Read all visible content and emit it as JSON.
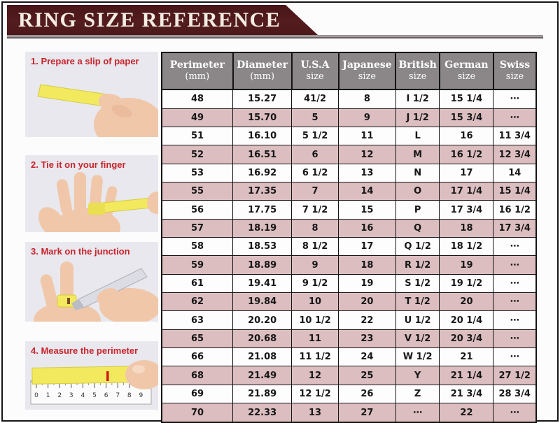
{
  "title": "RING SIZE REFERENCE",
  "steps": [
    {
      "label": "1. Prepare a slip of paper"
    },
    {
      "label": "2. Tie it on your finger"
    },
    {
      "label": "3. Mark on the junction"
    },
    {
      "label": "4. Measure the perimeter",
      "ruler_numbers": [
        "0",
        "1",
        "2",
        "3",
        "4",
        "5",
        "6",
        "7",
        "8",
        "9"
      ]
    }
  ],
  "table": {
    "headers": [
      {
        "line1": "Perimeter",
        "line2": "(mm)"
      },
      {
        "line1": "Diameter",
        "line2": "(mm)"
      },
      {
        "line1": "U.S.A",
        "line2": "size"
      },
      {
        "line1": "Japanese",
        "line2": "size"
      },
      {
        "line1": "British",
        "line2": "size"
      },
      {
        "line1": "German",
        "line2": "size"
      },
      {
        "line1": "Swiss",
        "line2": "size"
      }
    ],
    "rows": [
      [
        "48",
        "15.27",
        "41/2",
        "8",
        "I 1/2",
        "15 1/4",
        "⋯"
      ],
      [
        "49",
        "15.70",
        "5",
        "9",
        "J 1/2",
        "15 3/4",
        "⋯"
      ],
      [
        "51",
        "16.10",
        "5 1/2",
        "11",
        "L",
        "16",
        "11 3/4"
      ],
      [
        "52",
        "16.51",
        "6",
        "12",
        "M",
        "16 1/2",
        "12 3/4"
      ],
      [
        "53",
        "16.92",
        "6 1/2",
        "13",
        "N",
        "17",
        "14"
      ],
      [
        "55",
        "17.35",
        "7",
        "14",
        "O",
        "17 1/4",
        "15 1/4"
      ],
      [
        "56",
        "17.75",
        "7 1/2",
        "15",
        "P",
        "17 3/4",
        "16 1/2"
      ],
      [
        "57",
        "18.19",
        "8",
        "16",
        "Q",
        "18",
        "17 3/4"
      ],
      [
        "58",
        "18.53",
        "8 1/2",
        "17",
        "Q 1/2",
        "18 1/2",
        "⋯"
      ],
      [
        "59",
        "18.89",
        "9",
        "18",
        "R 1/2",
        "19",
        "⋯"
      ],
      [
        "61",
        "19.41",
        "9 1/2",
        "19",
        "S 1/2",
        "19 1/2",
        "⋯"
      ],
      [
        "62",
        "19.84",
        "10",
        "20",
        "T 1/2",
        "20",
        "⋯"
      ],
      [
        "63",
        "20.20",
        "10 1/2",
        "22",
        "U 1/2",
        "20 1/4",
        "⋯"
      ],
      [
        "65",
        "20.68",
        "11",
        "23",
        "V 1/2",
        "20 3/4",
        "⋯"
      ],
      [
        "66",
        "21.08",
        "11 1/2",
        "24",
        "W 1/2",
        "21",
        "⋯"
      ],
      [
        "68",
        "21.49",
        "12",
        "25",
        "Y",
        "21 1/4",
        "27 1/2"
      ],
      [
        "69",
        "21.89",
        "12 1/2",
        "26",
        "Z",
        "21 3/4",
        "28 3/4"
      ],
      [
        "70",
        "22.33",
        "13",
        "27",
        "⋯",
        "22",
        "⋯"
      ]
    ]
  },
  "colors": {
    "banner_maroon": "#4f191a",
    "header_gray": "#8b8788",
    "row_pink": "#dcbec1",
    "row_white": "#fdfdfd",
    "step_label_red": "#c9232b",
    "paper_yellow": "#f2e95e",
    "skin": "#f0c7a9",
    "border_black": "#141414"
  }
}
